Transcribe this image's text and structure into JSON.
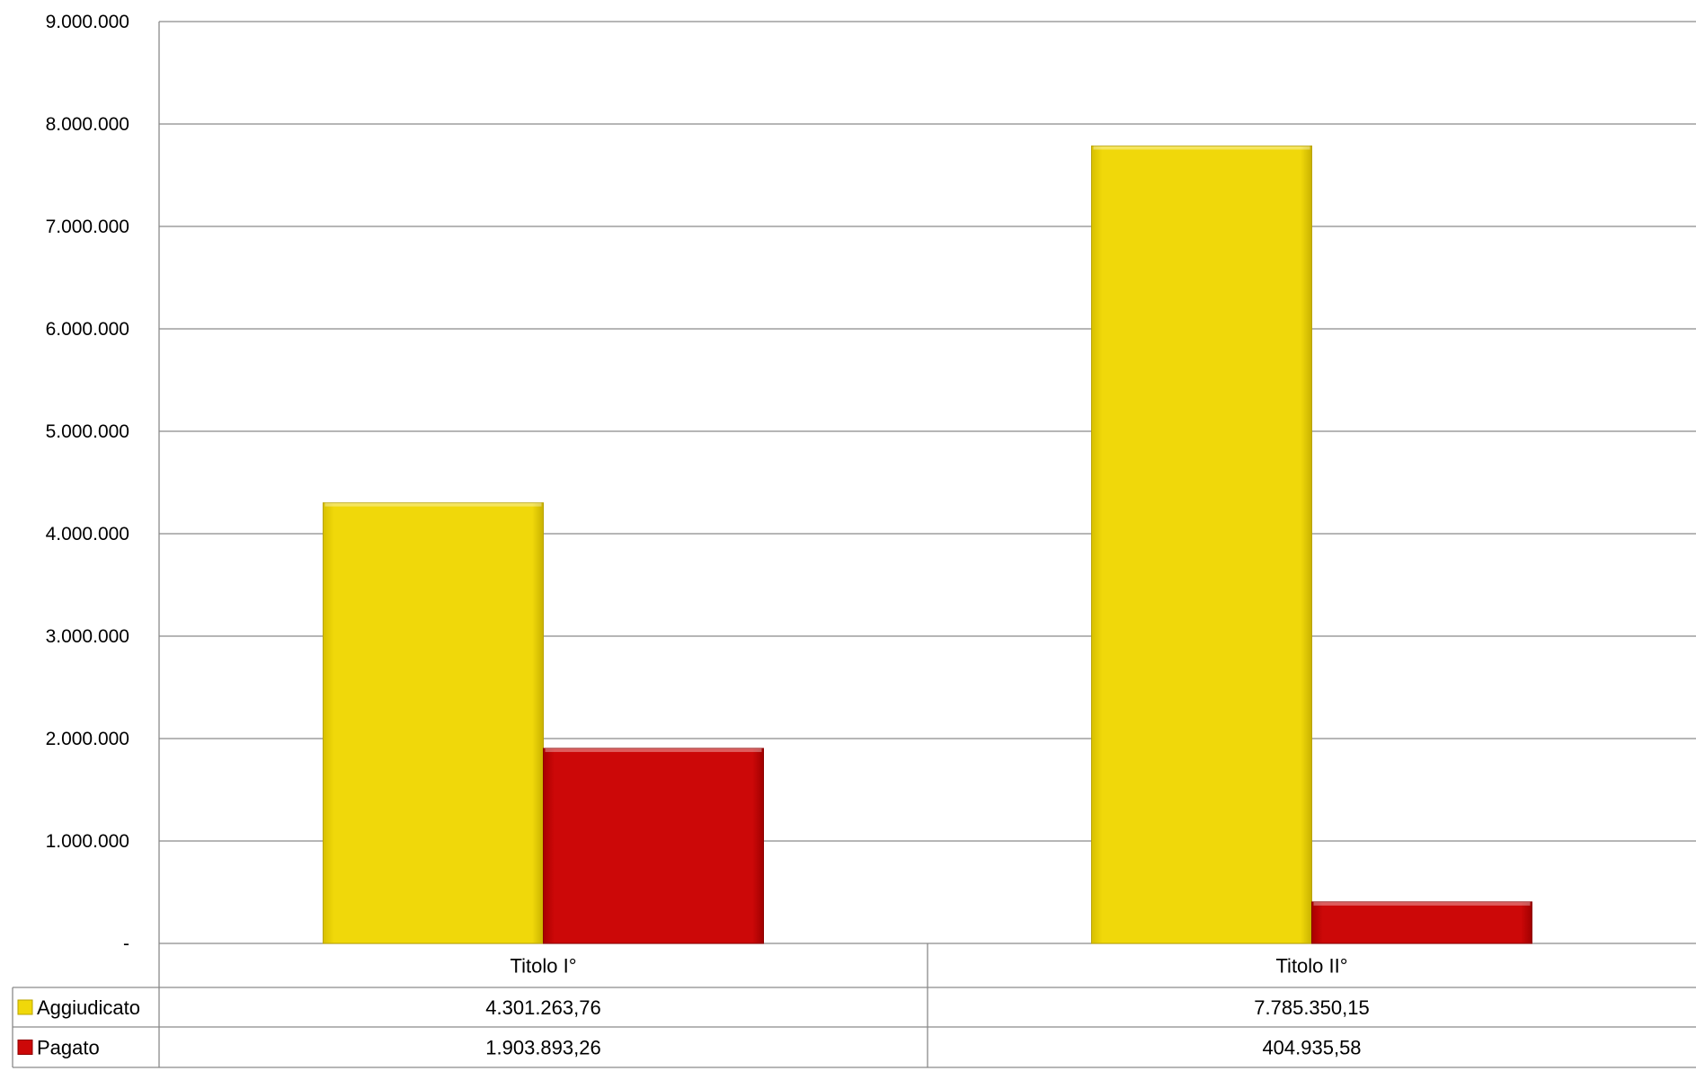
{
  "chart_data": {
    "type": "bar",
    "categories": [
      "Titolo I°",
      "Titolo II°"
    ],
    "series": [
      {
        "name": "Aggiudicato",
        "values": [
          4301263.76,
          7785350.15
        ],
        "labels": [
          "4.301.263,76",
          "7.785.350,15"
        ],
        "color": "#f0d80a"
      },
      {
        "name": "Pagato",
        "values": [
          1903893.26,
          404935.58
        ],
        "labels": [
          "1.903.893,26",
          "404.935,58"
        ],
        "color": "#cc0808"
      }
    ],
    "ylim": [
      0,
      9000000
    ],
    "yticks": [
      0,
      1000000,
      2000000,
      3000000,
      4000000,
      5000000,
      6000000,
      7000000,
      8000000,
      9000000
    ],
    "ytick_labels": [
      "-",
      "1.000.000",
      "2.000.000",
      "3.000.000",
      "4.000.000",
      "5.000.000",
      "6.000.000",
      "7.000.000",
      "8.000.000",
      "9.000.000"
    ],
    "grid": true,
    "legend": "data-table"
  }
}
